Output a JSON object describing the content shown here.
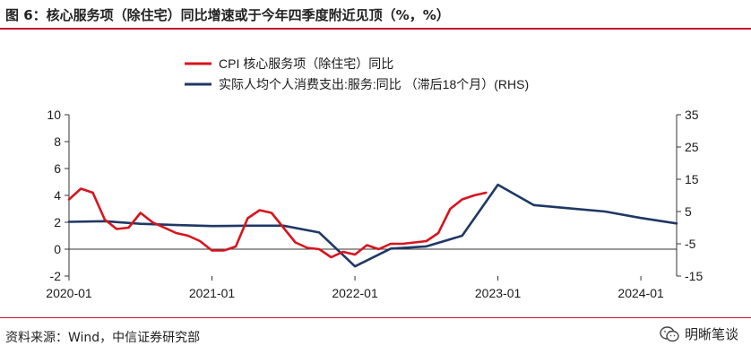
{
  "header": {
    "title": "图 6：核心服务项（除住宅）同比增速或于今年四季度附近见顶（%，%）"
  },
  "footer": {
    "source": "资料来源：Wind，中信证券研究部",
    "brand": "明晰笔谈"
  },
  "colors": {
    "accent": "#c8102e",
    "series_red": "#d7141e",
    "series_navy": "#1f3864"
  },
  "chart_data": {
    "type": "line",
    "title": "",
    "x_ticks": [
      "2020-01",
      "2021-01",
      "2022-01",
      "2023-01",
      "2024-01"
    ],
    "xlim": [
      "2020-01",
      "2024-04"
    ],
    "y_left": {
      "ticks": [
        "-2",
        "0",
        "2",
        "4",
        "6",
        "8",
        "10"
      ],
      "range": [
        -2,
        10
      ]
    },
    "y_right": {
      "ticks": [
        "-15",
        "-5",
        "5",
        "15",
        "25",
        "35"
      ],
      "range": [
        -15,
        35
      ]
    },
    "legend_position": "top-center",
    "series": [
      {
        "name": "CPI 核心服务项（除住宅）同比",
        "axis": "left",
        "color": "#d7141e",
        "x": [
          "2020-01",
          "2020-02",
          "2020-03",
          "2020-04",
          "2020-05",
          "2020-06",
          "2020-07",
          "2020-08",
          "2020-09",
          "2020-10",
          "2020-11",
          "2020-12",
          "2021-01",
          "2021-02",
          "2021-03",
          "2021-04",
          "2021-05",
          "2021-06",
          "2021-07",
          "2021-08",
          "2021-09",
          "2021-10",
          "2021-11",
          "2021-12",
          "2022-01",
          "2022-02",
          "2022-03",
          "2022-04",
          "2022-05",
          "2022-06",
          "2022-07",
          "2022-08",
          "2022-09",
          "2022-10",
          "2022-11",
          "2022-12"
        ],
        "y": [
          3.7,
          4.5,
          4.2,
          2.2,
          1.5,
          1.6,
          2.7,
          2.0,
          1.6,
          1.2,
          1.0,
          0.6,
          -0.1,
          -0.1,
          0.2,
          2.3,
          2.9,
          2.7,
          1.6,
          0.5,
          0.1,
          0.0,
          -0.6,
          -0.2,
          -0.4,
          0.3,
          0.0,
          0.4,
          0.4,
          0.5,
          0.6,
          1.2,
          3.0,
          3.7,
          4.0,
          4.2
        ]
      },
      {
        "name": "实际人均个人消费支出:服务:同比 （滞后18个月）(RHS)",
        "axis": "right",
        "color": "#1f3864",
        "x": [
          "2020-01",
          "2020-04",
          "2020-07",
          "2020-10",
          "2021-01",
          "2021-04",
          "2021-07",
          "2021-10",
          "2022-01",
          "2022-04",
          "2022-07",
          "2022-10",
          "2023-01",
          "2023-04",
          "2023-07",
          "2023-10",
          "2024-01",
          "2024-04"
        ],
        "y": [
          1.8,
          2.0,
          1.2,
          0.8,
          0.5,
          0.6,
          0.6,
          -1.5,
          -12.0,
          -6.5,
          -5.8,
          -2.5,
          13.3,
          7.0,
          6.0,
          5.0,
          3.0,
          1.3
        ]
      }
    ]
  }
}
